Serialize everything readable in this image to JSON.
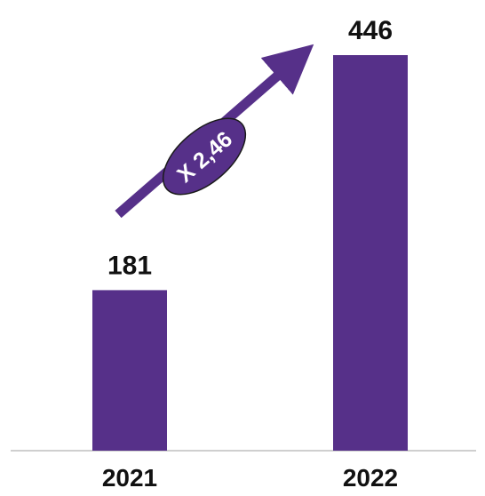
{
  "chart_data": {
    "type": "bar",
    "title": "",
    "xlabel": "",
    "ylabel": "",
    "categories": [
      "2021",
      "2022"
    ],
    "values": [
      181,
      446
    ],
    "value_labels": [
      "181",
      "446"
    ],
    "ylim": [
      0,
      446
    ],
    "grid": false,
    "legend": "none",
    "annotations": [
      {
        "text": "X 2,46",
        "from": "2021",
        "to": "2022"
      }
    ],
    "colors": {
      "bar": "#563089",
      "arrow": "#563089",
      "badge_fill": "#563089",
      "badge_border": "#1a1a1a",
      "baseline": "#bfbfbf",
      "text": "#111111",
      "badge_text": "#ffffff"
    }
  }
}
